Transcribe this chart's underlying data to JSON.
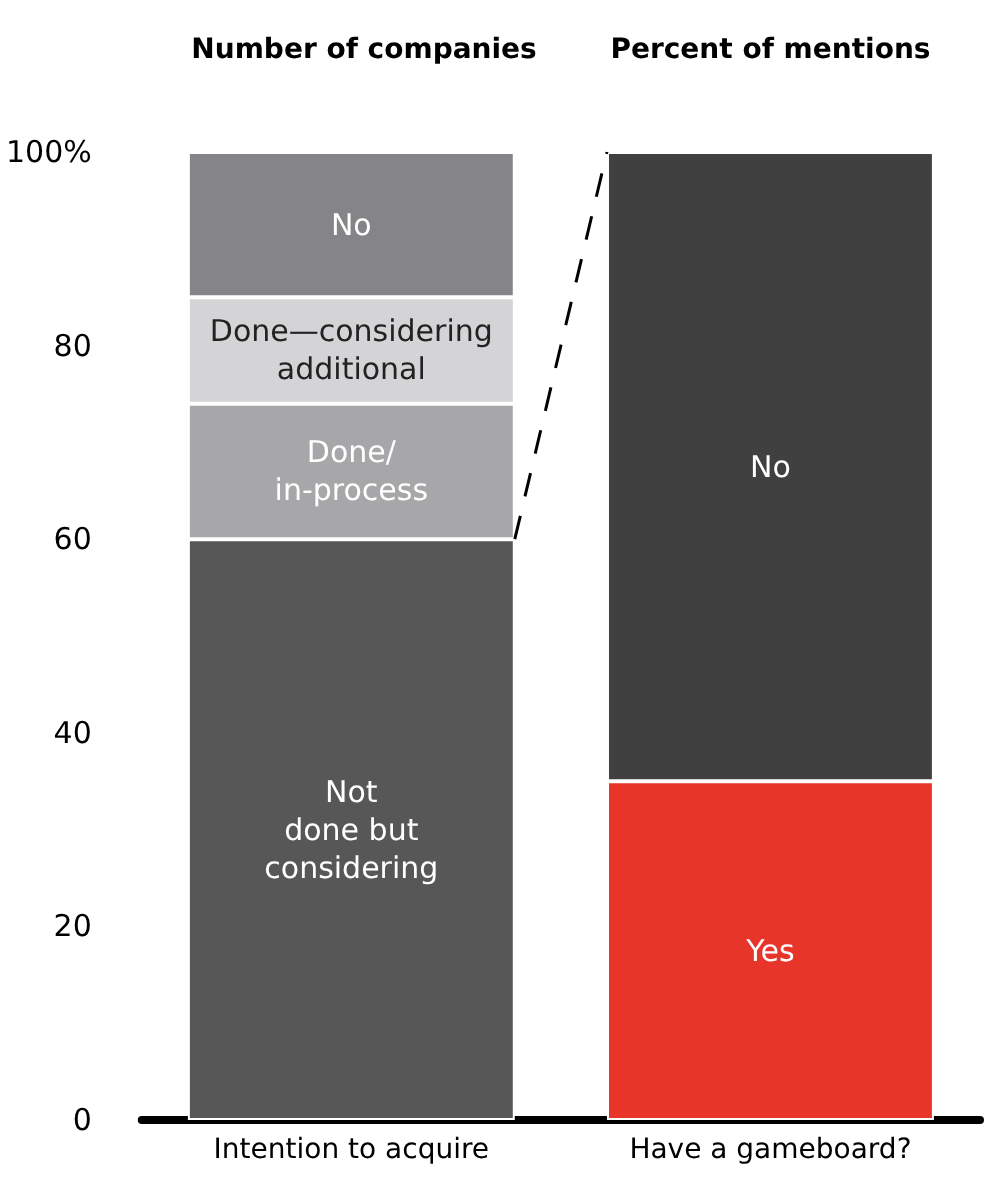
{
  "chart_data": {
    "type": "bar",
    "stacked": true,
    "categories": [
      "Intention to acquire",
      "Have a gameboard?"
    ],
    "annotations": [
      "Number of companies",
      "Percent of mentions"
    ],
    "series": [
      {
        "name": "Not\ndone but\nconsidering",
        "color": "#575757",
        "values": [
          60,
          null
        ]
      },
      {
        "name": "Done/\nin-process",
        "color": "#a7a7a9",
        "values": [
          14,
          null
        ]
      },
      {
        "name": "Done—considering\nadditional",
        "color": "#d4d4d6",
        "values": [
          11,
          null
        ]
      },
      {
        "name": "No",
        "color": "#858587",
        "values": [
          15,
          null
        ]
      },
      {
        "name": "Yes",
        "color": "#e8352a",
        "values": [
          null,
          35
        ]
      },
      {
        "name": "No",
        "color": "#404040",
        "values": [
          null,
          65
        ]
      }
    ],
    "ylim": [
      0,
      100
    ],
    "yticks": [
      0,
      20,
      40,
      60,
      80,
      {
        "value": 100,
        "label": "100%"
      }
    ],
    "grid": false,
    "legend": false
  }
}
